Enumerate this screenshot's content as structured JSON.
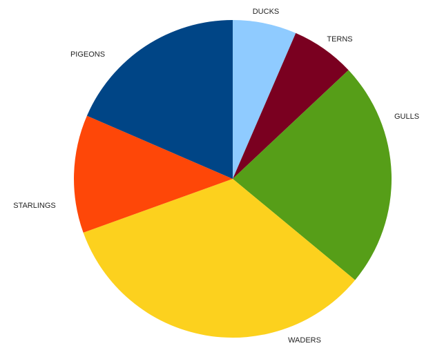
{
  "chart_data": {
    "type": "pie",
    "title": "",
    "start_angle_deg": 0,
    "direction": "clockwise",
    "slices": [
      {
        "label": "DUCKS",
        "value": 6.5,
        "color": "#8FCBFF"
      },
      {
        "label": "TERNS",
        "value": 6.5,
        "color": "#7A0020"
      },
      {
        "label": "GULLS",
        "value": 23.0,
        "color": "#569E18"
      },
      {
        "label": "WADERS",
        "value": 33.5,
        "color": "#FCD11E"
      },
      {
        "label": "STARLINGS",
        "value": 12.0,
        "color": "#FE4708"
      },
      {
        "label": "PIGEONS",
        "value": 18.5,
        "color": "#004586"
      }
    ]
  }
}
